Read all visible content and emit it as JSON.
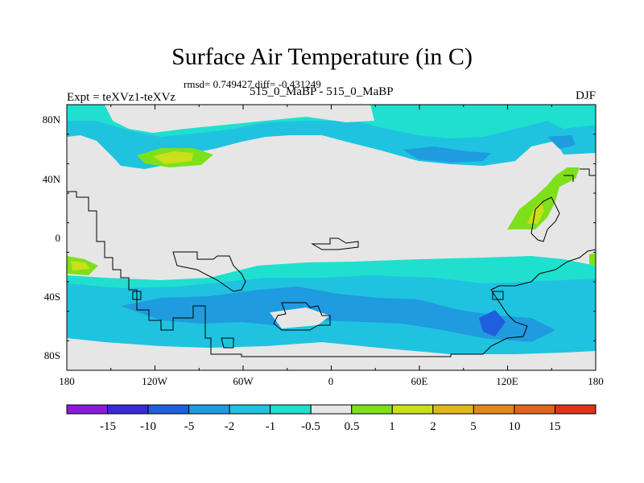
{
  "header": {
    "title": "Surface Air Temperature (in C)",
    "stats": "rmsd= 0.749427 diff= -0.431249",
    "experiment": "Expt = teXVz1-teXVz",
    "subtitle": "515_0_MaBP - 515_0_MaBP",
    "season": "DJF"
  },
  "map": {
    "x_ticks": [
      "180",
      "120W",
      "60W",
      "0",
      "60E",
      "120E",
      "180"
    ],
    "y_ticks": [
      "80N",
      "40N",
      "0",
      "40S",
      "80S"
    ],
    "lon_range": [
      -180,
      180
    ],
    "lat_range": [
      -90,
      90
    ],
    "background_color": "#e6e6e6"
  },
  "colorbar": {
    "labels": [
      "-15",
      "-10",
      "-5",
      "-2",
      "-1",
      "-0.5",
      "0.5",
      "1",
      "2",
      "5",
      "10",
      "15"
    ],
    "colors": [
      "#8a1bdb",
      "#3a2ad6",
      "#1f5fde",
      "#1f9be0",
      "#1fc3e0",
      "#1fe0cf",
      "#e6e6e6",
      "#7ee01a",
      "#c9e01a",
      "#e0b81a",
      "#e08a1a",
      "#e0641a",
      "#e0321a"
    ]
  }
}
